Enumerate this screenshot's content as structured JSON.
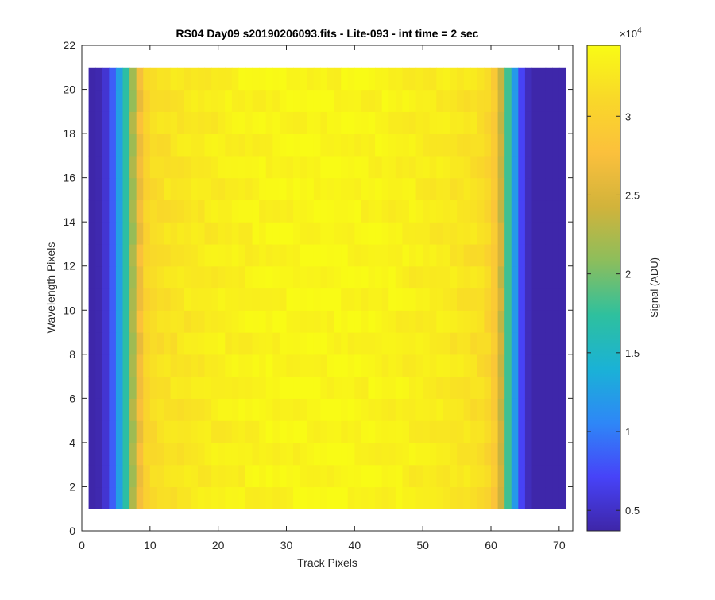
{
  "chart_data": {
    "type": "heatmap",
    "title": "RS04 Day09  s20190206093.fits - Lite-093 - int time = 2 sec",
    "xlabel": "Track Pixels",
    "ylabel": "Wavelength Pixels",
    "xlim": [
      0,
      72
    ],
    "ylim": [
      0,
      22
    ],
    "xticks": [
      "0",
      "10",
      "20",
      "30",
      "40",
      "50",
      "60",
      "70"
    ],
    "yticks": [
      "0",
      "2",
      "4",
      "6",
      "8",
      "10",
      "12",
      "14",
      "16",
      "18",
      "20",
      "22"
    ],
    "grid": false,
    "image_extent": {
      "x": [
        1,
        71
      ],
      "y": [
        1,
        21
      ]
    },
    "columns": 70,
    "rows": 20,
    "column_profile": [
      3800,
      4000,
      5500,
      8500,
      12500,
      17000,
      22000,
      27000,
      30500,
      31500,
      31800,
      32000,
      32200,
      32400,
      32500,
      32700,
      32800,
      33000,
      33100,
      33200,
      33300,
      33400,
      33500,
      33600,
      33700,
      33700,
      33800,
      33800,
      33900,
      33900,
      33950,
      34000,
      34000,
      34000,
      34050,
      34050,
      34000,
      34000,
      33950,
      33900,
      33900,
      33800,
      33800,
      33700,
      33600,
      33500,
      33400,
      33300,
      33200,
      33100,
      33000,
      32900,
      32800,
      32600,
      32500,
      32300,
      32100,
      31800,
      31000,
      29000,
      24000,
      18000,
      12000,
      7000,
      4500,
      3800,
      3800,
      3800,
      3800,
      3800
    ],
    "colorbar": {
      "label": "Signal (ADU)",
      "exponent_base": "×10",
      "exponent_power": "4",
      "range": [
        0.37,
        3.45
      ],
      "ticks": [
        "0.5",
        "1",
        "1.5",
        "2",
        "2.5",
        "3"
      ],
      "tick_values": [
        0.5,
        1,
        1.5,
        2,
        2.5,
        3
      ]
    },
    "colormap": [
      "#3e26a8",
      "#4743f8",
      "#2e87f7",
      "#1ab2d6",
      "#2ec09e",
      "#8cbe5c",
      "#d1b33b",
      "#fbc03c",
      "#f9d829",
      "#f9fb15"
    ]
  }
}
